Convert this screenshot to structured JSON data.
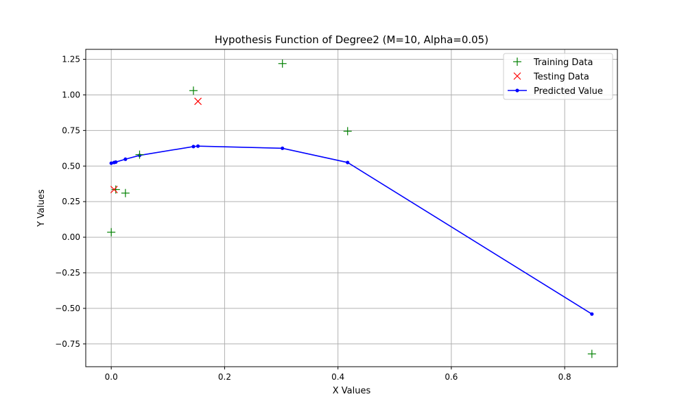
{
  "chart_data": {
    "type": "line",
    "title": "Hypothesis Function of Degree2 (M=10, Alpha=0.05)",
    "xlabel": "X Values",
    "ylabel": "Y Values",
    "xlim": [
      -0.045,
      0.893
    ],
    "ylim": [
      -0.91,
      1.32
    ],
    "x_ticks": [
      0.0,
      0.2,
      0.4,
      0.6,
      0.8
    ],
    "x_tick_labels": [
      "0.0",
      "0.2",
      "0.4",
      "0.6",
      "0.8"
    ],
    "y_ticks": [
      -0.75,
      -0.5,
      -0.25,
      0.0,
      0.25,
      0.5,
      0.75,
      1.0,
      1.25
    ],
    "y_tick_labels": [
      "−0.75",
      "−0.50",
      "−0.25",
      "0.00",
      "0.25",
      "0.50",
      "0.75",
      "1.00",
      "1.25"
    ],
    "grid": true,
    "legend_position": "top-right",
    "series": [
      {
        "name": "Training Data",
        "kind": "scatter",
        "marker": "plus",
        "color": "#008000",
        "x": [
          0.0,
          0.008,
          0.025,
          0.05,
          0.145,
          0.302,
          0.417,
          0.848
        ],
        "y": [
          0.035,
          0.335,
          0.31,
          0.58,
          1.03,
          1.22,
          0.745,
          -0.82
        ]
      },
      {
        "name": "Testing Data",
        "kind": "scatter",
        "marker": "x",
        "color": "#ff0000",
        "x": [
          0.005,
          0.153
        ],
        "y": [
          0.335,
          0.955
        ]
      },
      {
        "name": "Predicted Value",
        "kind": "line",
        "marker": "dot",
        "color": "#0000ff",
        "x": [
          0.0,
          0.005,
          0.008,
          0.025,
          0.05,
          0.145,
          0.153,
          0.302,
          0.417,
          0.848
        ],
        "y": [
          0.52,
          0.525,
          0.528,
          0.548,
          0.575,
          0.637,
          0.64,
          0.625,
          0.525,
          -0.54
        ]
      }
    ]
  }
}
